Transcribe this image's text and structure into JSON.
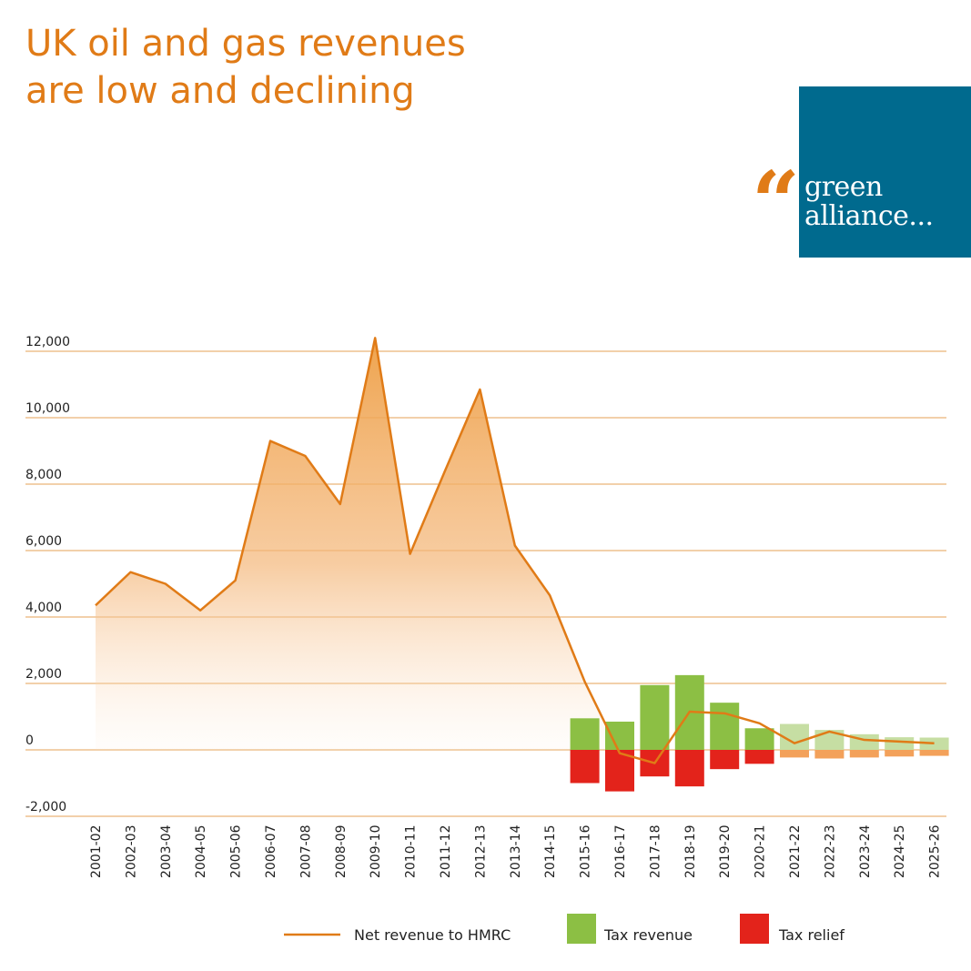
{
  "header": {
    "title_line1": "UK oil and gas revenues",
    "title_line2": "are low and declining"
  },
  "logo": {
    "quote_mark": "“",
    "line1": "green",
    "line2": "alliance..."
  },
  "colors": {
    "title": "#e07b17",
    "logo_bg": "#006a8e",
    "net_line": "#e07b17",
    "area_top": "#ee9f45",
    "tax_revenue": "#8cbf44",
    "tax_revenue_forecast": "#c6dea3",
    "tax_relief": "#e3231b",
    "tax_relief_forecast": "#f3a15a",
    "gridline": "#e4a254"
  },
  "chart_data": {
    "type": "area+bar",
    "title": "UK oil and gas revenues are low and declining",
    "xlabel": "",
    "ylabel": "",
    "ylim": [
      -2000,
      12000
    ],
    "yticks": [
      -2000,
      0,
      2000,
      4000,
      6000,
      8000,
      10000,
      12000
    ],
    "ytick_labels": [
      "-2,000",
      "0",
      "2,000",
      "4,000",
      "6,000",
      "8,000",
      "10,000",
      "12,000"
    ],
    "categories": [
      "2001-02",
      "2002-03",
      "2003-04",
      "2004-05",
      "2005-06",
      "2006-07",
      "2007-08",
      "2008-09",
      "2009-10",
      "2010-11",
      "2011-12",
      "2012-13",
      "2013-14",
      "2014-15",
      "2015-16",
      "2016-17",
      "2017-18",
      "2018-19",
      "2019-20",
      "2020-21",
      "2021-22",
      "2022-23",
      "2023-24",
      "2024-25",
      "2025-26"
    ],
    "forecast_from_index": 20,
    "series": [
      {
        "name": "Net revenue to HMRC",
        "kind": "line",
        "values": [
          4350,
          5350,
          5000,
          4200,
          5100,
          9300,
          8850,
          7400,
          12400,
          5900,
          8400,
          10850,
          6150,
          4650,
          2050,
          -100,
          -400,
          1150,
          1100,
          800,
          200,
          550,
          300,
          250,
          200
        ]
      },
      {
        "name": "Tax revenue",
        "kind": "bar",
        "values": [
          null,
          null,
          null,
          null,
          null,
          null,
          null,
          null,
          null,
          null,
          null,
          null,
          null,
          null,
          950,
          850,
          1950,
          2250,
          1420,
          650,
          780,
          600,
          470,
          380,
          370
        ]
      },
      {
        "name": "Tax relief",
        "kind": "bar",
        "values": [
          null,
          null,
          null,
          null,
          null,
          null,
          null,
          null,
          null,
          null,
          null,
          null,
          null,
          null,
          -1000,
          -1250,
          -800,
          -1100,
          -580,
          -420,
          -230,
          -260,
          -230,
          -200,
          -180
        ]
      }
    ],
    "legend": [
      "Net revenue to HMRC",
      "Tax revenue",
      "Tax relief"
    ],
    "legend_position": "bottom",
    "grid": true
  }
}
